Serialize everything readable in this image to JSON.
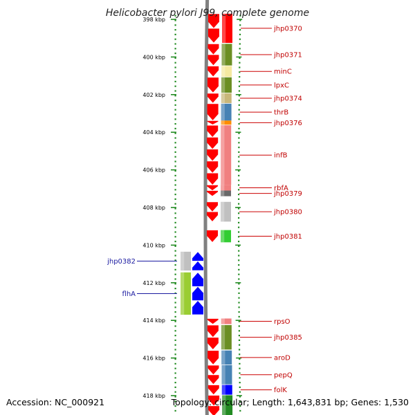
{
  "title": "Helicobacter pylori J99, complete genome",
  "footer": {
    "accession": "Accession: NC_000921",
    "topology": "Topology: circular; Length: 1,643,831 bp; Genes: 1,530"
  },
  "colors": {
    "reverse_gene": "#ff0000",
    "forward_gene": "#0000ff",
    "dna_backbone": "#808080",
    "tick_dots": "#228b22",
    "reverse_label": "#cc0000",
    "forward_label": "#1a1aa0"
  },
  "axis": {
    "unit": "kbp",
    "range_kbp": [
      398,
      419
    ],
    "ticks": [
      {
        "value": 398,
        "label": "398 kbp"
      },
      {
        "value": 400,
        "label": "400 kbp"
      },
      {
        "value": 402,
        "label": "402 kbp"
      },
      {
        "value": 404,
        "label": "404 kbp"
      },
      {
        "value": 406,
        "label": "406 kbp"
      },
      {
        "value": 408,
        "label": "408 kbp"
      },
      {
        "value": 410,
        "label": "410 kbp"
      },
      {
        "value": 412,
        "label": "412 kbp"
      },
      {
        "value": 414,
        "label": "414 kbp"
      },
      {
        "value": 416,
        "label": "416 kbp"
      },
      {
        "value": 418,
        "label": "418 kbp"
      }
    ]
  },
  "genes": [
    {
      "name": "jhp0370",
      "strand": "reverse",
      "start_kbp": 397.7,
      "end_kbp": 399.25,
      "cog_color": "#ff0000"
    },
    {
      "name": "jhp0371",
      "strand": "reverse",
      "start_kbp": 399.3,
      "end_kbp": 400.45,
      "cog_color": "#6b8e23"
    },
    {
      "name": "minC",
      "strand": "reverse",
      "start_kbp": 400.48,
      "end_kbp": 401.05,
      "cog_color": "#f5e9a0"
    },
    {
      "name": "lpxC",
      "strand": "reverse",
      "start_kbp": 401.08,
      "end_kbp": 401.9,
      "cog_color": "#6b8e23"
    },
    {
      "name": "jhp0374",
      "strand": "reverse",
      "start_kbp": 401.93,
      "end_kbp": 402.45,
      "cog_color": "#c8b77a"
    },
    {
      "name": "thrB",
      "strand": "reverse",
      "start_kbp": 402.48,
      "end_kbp": 403.38,
      "cog_color": "#4682b4"
    },
    {
      "name": "jhp0376",
      "strand": "reverse",
      "start_kbp": 403.38,
      "end_kbp": 403.6,
      "cog_color": "#ff8c00"
    },
    {
      "name": "infB",
      "strand": "reverse",
      "start_kbp": 403.63,
      "end_kbp": 406.8,
      "cog_color": "#f08080"
    },
    {
      "name": "rbfA",
      "strand": "reverse",
      "start_kbp": 406.8,
      "end_kbp": 407.1,
      "cog_color": "#f08080"
    },
    {
      "name": "jhp0379",
      "strand": "reverse",
      "start_kbp": 407.1,
      "end_kbp": 407.4,
      "cog_color": "#696969"
    },
    {
      "name": "jhp0380",
      "strand": "reverse",
      "start_kbp": 407.7,
      "end_kbp": 408.75,
      "cog_color": "#c0c0c0"
    },
    {
      "name": "jhp0381",
      "strand": "reverse",
      "start_kbp": 409.2,
      "end_kbp": 409.85,
      "cog_color": "#32cd32"
    },
    {
      "name": "jhp0382",
      "strand": "forward",
      "start_kbp": 410.35,
      "end_kbp": 411.35,
      "cog_color": "#c0c0c0"
    },
    {
      "name": "flhA",
      "strand": "forward",
      "start_kbp": 411.45,
      "end_kbp": 413.7,
      "cog_color": "#9acd32"
    },
    {
      "name": "rpsO",
      "strand": "reverse",
      "start_kbp": 413.9,
      "end_kbp": 414.2,
      "cog_color": "#f08080"
    },
    {
      "name": "jhp0385",
      "strand": "reverse",
      "start_kbp": 414.25,
      "end_kbp": 415.55,
      "cog_color": "#6b8e23"
    },
    {
      "name": "aroD",
      "strand": "reverse",
      "start_kbp": 415.6,
      "end_kbp": 416.35,
      "cog_color": "#4682b4"
    },
    {
      "name": "pepQ",
      "strand": "reverse",
      "start_kbp": 416.38,
      "end_kbp": 417.4,
      "cog_color": "#4682b4"
    },
    {
      "name": "folK",
      "strand": "reverse",
      "start_kbp": 417.43,
      "end_kbp": 417.95,
      "cog_color": "#0000ff"
    },
    {
      "name": "",
      "strand": "reverse",
      "start_kbp": 417.98,
      "end_kbp": 419.3,
      "cog_color": "#228b22"
    }
  ]
}
